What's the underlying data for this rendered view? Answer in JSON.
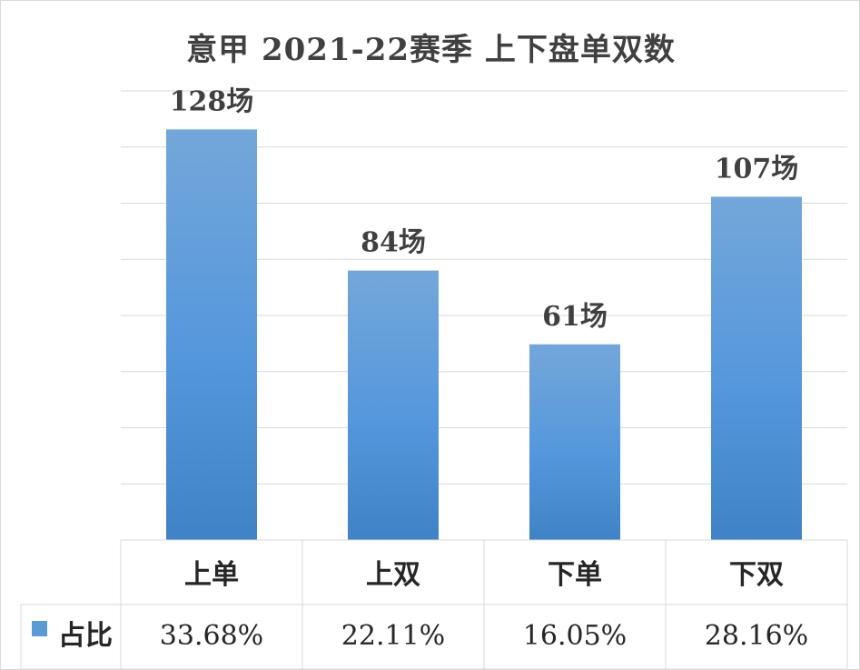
{
  "chart_data": {
    "type": "bar",
    "title": "意甲 2021-22赛季 上下盘单双数",
    "categories": [
      "上单",
      "上双",
      "下单",
      "下双"
    ],
    "values": [
      128,
      84,
      61,
      107
    ],
    "data_labels": [
      "128场",
      "84场",
      "61场",
      "107场"
    ],
    "ylim": [
      0,
      140
    ],
    "grid": true,
    "bar_color": "#5b9bd5",
    "data_table": {
      "series_name": "占比",
      "values": [
        "33.68%",
        "22.11%",
        "16.05%",
        "28.16%"
      ]
    }
  }
}
